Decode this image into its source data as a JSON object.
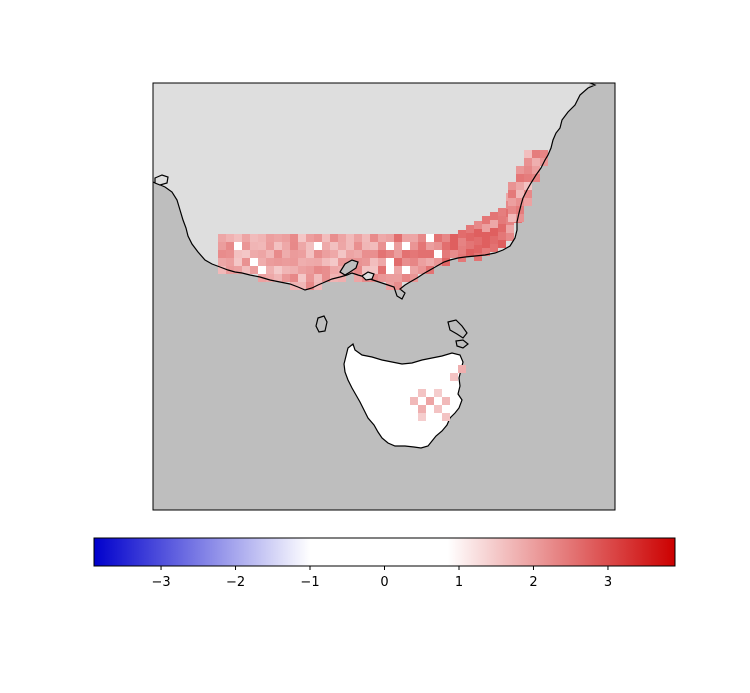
{
  "map": {
    "ocean_color": "#bebebe",
    "land_no_data_color": "#dedede",
    "coastline_color": "#000000",
    "region": "South-eastern Australia (Victoria) and Tasmania",
    "grid_cells": "mostly light-to-medium red anomaly cells over southern Victoria, stronger red along the east Gippsland coast; Tasmania mostly near zero (white) with a few light red cells in the north-east and south-east"
  },
  "colorbar": {
    "colormap": "seismic-like (blue → white → red)",
    "min_color": "#0000cc",
    "mid_color": "#ffffff",
    "max_color": "#cc0000",
    "range": [
      -3.9,
      3.9
    ],
    "white_band": [
      -1,
      0.85
    ],
    "ticks": [
      {
        "value": -3,
        "label": "−3"
      },
      {
        "value": -2,
        "label": "−2"
      },
      {
        "value": -1,
        "label": "−1"
      },
      {
        "value": 0,
        "label": "0"
      },
      {
        "value": 1,
        "label": "1"
      },
      {
        "value": 2,
        "label": "2"
      },
      {
        "value": 3,
        "label": "3"
      }
    ]
  }
}
